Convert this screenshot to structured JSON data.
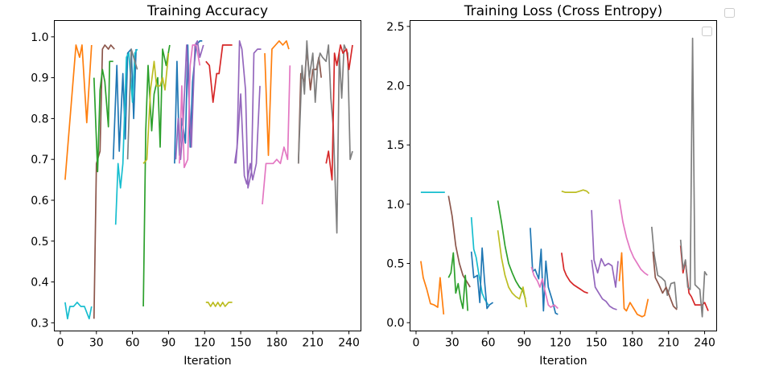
{
  "colors": [
    "#1f77b4",
    "#ff7f0e",
    "#2ca02c",
    "#d62728",
    "#9467bd",
    "#8c564b",
    "#e377c2",
    "#7f7f7f",
    "#bcbd22",
    "#17becf"
  ],
  "chart_data": [
    {
      "type": "line",
      "title": "Training Accuracy",
      "xlabel": "Iteration",
      "ylabel": "",
      "xlim": [
        -5,
        250
      ],
      "ylim": [
        0.28,
        1.04
      ],
      "xticks": [
        0,
        30,
        60,
        90,
        120,
        150,
        180,
        210,
        240
      ],
      "xtick_labels": [
        "0",
        "30",
        "60",
        "90",
        "120",
        "150",
        "180",
        "210",
        "240"
      ],
      "yticks": [
        0.3,
        0.4,
        0.5,
        0.6,
        0.7,
        0.8,
        0.9,
        1.0
      ],
      "ytick_labels": [
        "0.3",
        "0.4",
        "0.5",
        "0.6",
        "0.7",
        "0.8",
        "0.9",
        "1.0"
      ],
      "grid": false,
      "series": [
        {
          "color_index": 1,
          "x": [
            4,
            13,
            16,
            18,
            22,
            26
          ],
          "y": [
            0.65,
            0.98,
            0.95,
            0.98,
            0.79,
            0.98
          ]
        },
        {
          "color_index": 9,
          "x": [
            4,
            6,
            8,
            11,
            14,
            17,
            20,
            24,
            26
          ],
          "y": [
            0.35,
            0.31,
            0.34,
            0.34,
            0.35,
            0.34,
            0.34,
            0.31,
            0.34
          ]
        },
        {
          "color_index": 5,
          "x": [
            28,
            30,
            33,
            35,
            37,
            40,
            42,
            45
          ],
          "y": [
            0.31,
            0.69,
            0.72,
            0.97,
            0.98,
            0.97,
            0.98,
            0.97
          ]
        },
        {
          "color_index": 2,
          "x": [
            28,
            31,
            33,
            35,
            37,
            40,
            41,
            44
          ],
          "y": [
            0.9,
            0.67,
            0.87,
            0.92,
            0.89,
            0.78,
            0.94,
            0.94
          ]
        },
        {
          "color_index": 0,
          "x": [
            44,
            47,
            49,
            52,
            54,
            56,
            59,
            61,
            63
          ],
          "y": [
            0.7,
            0.93,
            0.72,
            0.91,
            0.75,
            0.96,
            0.97,
            0.8,
            0.97
          ]
        },
        {
          "color_index": 9,
          "x": [
            46,
            48,
            50,
            52,
            55,
            57,
            60,
            62,
            64
          ],
          "y": [
            0.54,
            0.69,
            0.63,
            0.69,
            0.95,
            0.96,
            0.84,
            0.96,
            0.97
          ]
        },
        {
          "color_index": 7,
          "x": [
            56,
            59,
            61,
            64
          ],
          "y": [
            0.7,
            0.97,
            0.95,
            0.92
          ]
        },
        {
          "color_index": 2,
          "x": [
            69,
            71,
            73,
            76,
            78,
            81,
            83,
            85,
            88,
            91
          ],
          "y": [
            0.34,
            0.77,
            0.93,
            0.77,
            0.86,
            0.9,
            0.73,
            0.97,
            0.93,
            0.98
          ]
        },
        {
          "color_index": 8,
          "x": [
            69,
            72,
            75,
            78,
            80,
            83,
            85,
            87,
            90
          ],
          "y": [
            0.69,
            0.7,
            0.87,
            0.94,
            0.88,
            0.88,
            0.9,
            0.87,
            0.96
          ]
        },
        {
          "color_index": 0,
          "x": [
            95,
            97,
            99,
            101,
            104,
            106,
            108,
            110,
            113,
            116,
            118
          ],
          "y": [
            0.69,
            0.94,
            0.71,
            0.8,
            0.74,
            0.98,
            0.73,
            0.89,
            0.98,
            0.99,
            0.99
          ]
        },
        {
          "color_index": 4,
          "x": [
            96,
            98,
            100,
            102,
            105,
            107,
            109,
            112,
            114,
            116,
            119
          ],
          "y": [
            0.7,
            0.8,
            0.7,
            0.78,
            0.98,
            0.85,
            0.73,
            0.98,
            0.99,
            0.95,
            0.98
          ]
        },
        {
          "color_index": 6,
          "x": [
            99,
            101,
            103,
            106,
            108,
            110,
            113,
            116
          ],
          "y": [
            0.69,
            0.88,
            0.68,
            0.7,
            0.93,
            0.98,
            0.98,
            0.93
          ]
        },
        {
          "color_index": 3,
          "x": [
            121,
            124,
            127,
            130,
            132,
            135,
            137,
            140,
            143
          ],
          "y": [
            0.94,
            0.93,
            0.84,
            0.91,
            0.91,
            0.98,
            0.98,
            0.98,
            0.98
          ]
        },
        {
          "color_index": 8,
          "x": [
            121,
            123,
            125,
            127,
            129,
            131,
            133,
            135,
            137,
            140,
            143
          ],
          "y": [
            0.35,
            0.35,
            0.34,
            0.35,
            0.34,
            0.35,
            0.34,
            0.35,
            0.34,
            0.35,
            0.35
          ]
        },
        {
          "color_index": 4,
          "x": [
            145,
            147,
            149,
            151,
            154,
            156,
            159,
            161,
            164,
            167
          ],
          "y": [
            0.69,
            0.73,
            0.99,
            0.97,
            0.87,
            0.63,
            0.67,
            0.96,
            0.97,
            0.97
          ]
        },
        {
          "color_index": 4,
          "x": [
            146,
            148,
            150,
            153,
            155,
            158,
            160,
            163,
            166
          ],
          "y": [
            0.69,
            0.77,
            0.86,
            0.66,
            0.64,
            0.69,
            0.65,
            0.69,
            0.88
          ]
        },
        {
          "color_index": 1,
          "x": [
            170,
            173,
            176,
            179,
            182,
            185,
            188,
            190
          ],
          "y": [
            0.96,
            0.71,
            0.97,
            0.98,
            0.99,
            0.98,
            0.99,
            0.97
          ]
        },
        {
          "color_index": 6,
          "x": [
            168,
            171,
            174,
            177,
            180,
            183,
            186,
            189,
            191
          ],
          "y": [
            0.59,
            0.69,
            0.69,
            0.69,
            0.7,
            0.69,
            0.73,
            0.7,
            0.93
          ]
        },
        {
          "color_index": 5,
          "x": [
            198,
            200,
            203,
            205,
            208,
            210,
            213,
            215,
            217
          ],
          "y": [
            0.69,
            0.91,
            0.89,
            0.97,
            0.87,
            0.92,
            0.92,
            0.95,
            0.9
          ]
        },
        {
          "color_index": 7,
          "x": [
            198,
            201,
            203,
            205,
            207,
            210,
            212,
            214,
            216,
            218,
            221,
            223,
            225,
            227,
            230,
            232,
            234,
            236,
            239,
            241,
            243
          ],
          "y": [
            0.69,
            0.93,
            0.86,
            0.99,
            0.9,
            0.96,
            0.84,
            0.93,
            0.96,
            0.95,
            0.94,
            0.98,
            0.85,
            0.78,
            0.52,
            0.96,
            0.85,
            0.98,
            0.96,
            0.7,
            0.72
          ]
        },
        {
          "color_index": 3,
          "x": [
            221,
            223,
            226,
            228,
            230,
            233,
            235,
            238,
            240,
            243
          ],
          "y": [
            0.69,
            0.72,
            0.65,
            0.96,
            0.93,
            0.98,
            0.96,
            0.97,
            0.92,
            0.98
          ]
        }
      ]
    },
    {
      "type": "line",
      "title": "Training Loss (Cross Entropy)",
      "xlabel": "Iteration",
      "ylabel": "",
      "xlim": [
        -5,
        250
      ],
      "ylim": [
        -0.07,
        2.55
      ],
      "xticks": [
        0,
        30,
        60,
        90,
        120,
        150,
        180,
        210,
        240
      ],
      "xtick_labels": [
        "0",
        "30",
        "60",
        "90",
        "120",
        "150",
        "180",
        "210",
        "240"
      ],
      "yticks": [
        0.0,
        0.5,
        1.0,
        1.5,
        2.0,
        2.5
      ],
      "ytick_labels": [
        "0.0",
        "0.5",
        "1.0",
        "1.5",
        "2.0",
        "2.5"
      ],
      "grid": false,
      "series": [
        {
          "color_index": 9,
          "x": [
            4,
            8,
            12,
            16,
            20,
            24
          ],
          "y": [
            1.1,
            1.1,
            1.1,
            1.1,
            1.1,
            1.1
          ]
        },
        {
          "color_index": 1,
          "x": [
            4,
            6,
            9,
            12,
            15,
            18,
            20,
            23
          ],
          "y": [
            0.52,
            0.38,
            0.28,
            0.16,
            0.15,
            0.13,
            0.38,
            0.07
          ]
        },
        {
          "color_index": 5,
          "x": [
            27,
            30,
            33,
            36,
            39,
            42,
            45
          ],
          "y": [
            1.07,
            0.9,
            0.65,
            0.5,
            0.4,
            0.35,
            0.3
          ]
        },
        {
          "color_index": 2,
          "x": [
            27,
            29,
            31,
            33,
            35,
            37,
            39,
            41,
            43
          ],
          "y": [
            0.38,
            0.42,
            0.59,
            0.25,
            0.33,
            0.2,
            0.12,
            0.4,
            0.1
          ]
        },
        {
          "color_index": 9,
          "x": [
            46,
            48,
            50,
            52,
            55,
            57,
            60
          ],
          "y": [
            0.89,
            0.62,
            0.55,
            0.42,
            0.25,
            0.2,
            0.15
          ]
        },
        {
          "color_index": 0,
          "x": [
            46,
            48,
            51,
            53,
            55,
            57,
            59,
            61,
            64
          ],
          "y": [
            0.6,
            0.38,
            0.4,
            0.17,
            0.63,
            0.35,
            0.12,
            0.15,
            0.17
          ]
        },
        {
          "color_index": 2,
          "x": [
            68,
            71,
            74,
            77,
            80,
            83,
            86,
            89,
            91
          ],
          "y": [
            1.03,
            0.85,
            0.65,
            0.5,
            0.42,
            0.35,
            0.3,
            0.27,
            0.2
          ]
        },
        {
          "color_index": 8,
          "x": [
            68,
            71,
            74,
            77,
            80,
            83,
            86,
            89,
            92
          ],
          "y": [
            0.78,
            0.55,
            0.4,
            0.3,
            0.25,
            0.22,
            0.2,
            0.3,
            0.13
          ]
        },
        {
          "color_index": 0,
          "x": [
            95,
            97,
            99,
            102,
            104,
            106,
            108,
            110,
            113,
            116,
            118
          ],
          "y": [
            0.8,
            0.43,
            0.45,
            0.37,
            0.62,
            0.1,
            0.52,
            0.3,
            0.2,
            0.08,
            0.07
          ]
        },
        {
          "color_index": 6,
          "x": [
            96,
            98,
            101,
            103,
            105,
            107,
            110,
            112,
            115,
            118
          ],
          "y": [
            0.47,
            0.4,
            0.35,
            0.3,
            0.37,
            0.28,
            0.15,
            0.13,
            0.15,
            0.12
          ]
        },
        {
          "color_index": 3,
          "x": [
            121,
            123,
            125,
            128,
            131,
            134,
            137,
            140,
            143
          ],
          "y": [
            0.59,
            0.45,
            0.4,
            0.35,
            0.32,
            0.3,
            0.28,
            0.26,
            0.25
          ]
        },
        {
          "color_index": 8,
          "x": [
            121,
            124,
            127,
            130,
            133,
            136,
            139,
            142,
            144
          ],
          "y": [
            1.11,
            1.1,
            1.1,
            1.1,
            1.1,
            1.11,
            1.12,
            1.11,
            1.09
          ]
        },
        {
          "color_index": 4,
          "x": [
            146,
            148,
            151,
            154,
            157,
            160,
            163,
            166,
            168
          ],
          "y": [
            0.95,
            0.53,
            0.42,
            0.54,
            0.48,
            0.5,
            0.48,
            0.3,
            0.52
          ]
        },
        {
          "color_index": 4,
          "x": [
            146,
            149,
            152,
            155,
            158,
            161,
            164,
            167
          ],
          "y": [
            0.53,
            0.3,
            0.25,
            0.2,
            0.18,
            0.14,
            0.12,
            0.11
          ]
        },
        {
          "color_index": 6,
          "x": [
            169,
            172,
            175,
            178,
            181,
            184,
            187,
            190,
            193
          ],
          "y": [
            1.04,
            0.85,
            0.72,
            0.62,
            0.55,
            0.5,
            0.45,
            0.42,
            0.4
          ]
        },
        {
          "color_index": 1,
          "x": [
            169,
            171,
            173,
            175,
            178,
            181,
            184,
            188,
            190,
            193
          ],
          "y": [
            0.35,
            0.59,
            0.12,
            0.1,
            0.17,
            0.12,
            0.07,
            0.05,
            0.06,
            0.2
          ]
        },
        {
          "color_index": 7,
          "x": [
            196,
            198,
            201,
            204,
            207,
            209,
            212,
            215,
            217
          ],
          "y": [
            0.81,
            0.58,
            0.4,
            0.38,
            0.35,
            0.23,
            0.33,
            0.34,
            0.12
          ]
        },
        {
          "color_index": 5,
          "x": [
            197,
            199,
            202,
            205,
            208,
            211,
            214,
            217
          ],
          "y": [
            0.6,
            0.38,
            0.32,
            0.25,
            0.3,
            0.22,
            0.14,
            0.11
          ]
        },
        {
          "color_index": 3,
          "x": [
            220,
            222,
            224,
            227,
            229,
            232,
            235,
            238,
            240,
            243
          ],
          "y": [
            0.65,
            0.42,
            0.52,
            0.25,
            0.22,
            0.15,
            0.15,
            0.15,
            0.17,
            0.1
          ]
        },
        {
          "color_index": 7,
          "x": [
            220,
            222,
            224,
            226,
            228,
            230,
            232,
            234,
            236,
            238,
            240,
            242
          ],
          "y": [
            0.7,
            0.45,
            0.53,
            0.3,
            0.28,
            2.4,
            0.32,
            0.3,
            0.28,
            0.05,
            0.43,
            0.4
          ]
        }
      ]
    }
  ]
}
